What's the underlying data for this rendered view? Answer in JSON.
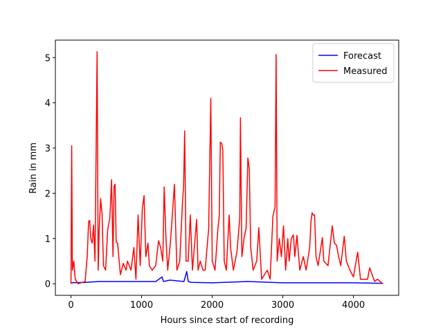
{
  "chart_data": {
    "type": "line",
    "xlabel": "Hours since start of recording",
    "ylabel": "Rain in mm",
    "xlim": [
      -221,
      4641
    ],
    "ylim": [
      -0.2565,
      5.3865
    ],
    "xticks": [
      0,
      1000,
      2000,
      3000,
      4000
    ],
    "yticks": [
      0,
      1,
      2,
      3,
      4,
      5
    ],
    "legend": "upper right",
    "series": [
      {
        "name": "Forecast",
        "color": "#0000ff",
        "x": [
          0,
          200,
          400,
          800,
          1200,
          1290,
          1310,
          1400,
          1600,
          1640,
          1660,
          1700,
          2000,
          2500,
          3000,
          3500,
          4000,
          4420
        ],
        "values": [
          0.02,
          0.03,
          0.05,
          0.05,
          0.05,
          0.15,
          0.05,
          0.08,
          0.05,
          0.27,
          0.05,
          0.03,
          0.02,
          0.05,
          0.02,
          0.02,
          0.02,
          0.01
        ]
      },
      {
        "name": "Measured",
        "color": "#ff0000",
        "x": [
          0,
          10,
          20,
          40,
          60,
          100,
          200,
          230,
          250,
          265,
          280,
          300,
          320,
          340,
          370,
          385,
          400,
          420,
          440,
          460,
          490,
          520,
          550,
          575,
          595,
          610,
          625,
          640,
          660,
          700,
          740,
          780,
          800,
          850,
          890,
          920,
          950,
          980,
          1010,
          1035,
          1060,
          1090,
          1110,
          1150,
          1200,
          1240,
          1270,
          1300,
          1320,
          1345,
          1370,
          1410,
          1430,
          1465,
          1500,
          1540,
          1580,
          1595,
          1610,
          1630,
          1660,
          1690,
          1720,
          1780,
          1800,
          1830,
          1870,
          1900,
          1950,
          1980,
          2000,
          2040,
          2080,
          2100,
          2115,
          2135,
          2150,
          2170,
          2200,
          2240,
          2260,
          2300,
          2350,
          2390,
          2400,
          2420,
          2450,
          2480,
          2505,
          2525,
          2545,
          2580,
          2630,
          2660,
          2700,
          2780,
          2820,
          2860,
          2890,
          2905,
          2920,
          2950,
          2980,
          3010,
          3040,
          3070,
          3090,
          3120,
          3150,
          3170,
          3200,
          3240,
          3290,
          3330,
          3380,
          3400,
          3415,
          3430,
          3450,
          3470,
          3500,
          3560,
          3580,
          3640,
          3700,
          3730,
          3760,
          3790,
          3820,
          3870,
          3900,
          3950,
          4000,
          4060,
          4100,
          4200,
          4230,
          4300,
          4340,
          4400,
          4420
        ],
        "values": [
          0,
          3.05,
          0.3,
          0.5,
          0.1,
          0,
          0.05,
          0.6,
          1.38,
          1.4,
          1.0,
          0.9,
          1.3,
          0.5,
          5.13,
          0.3,
          1.2,
          1.88,
          1.55,
          0.4,
          0.3,
          1.2,
          1.45,
          2.3,
          0.6,
          2.15,
          2.2,
          0.92,
          0.9,
          0.2,
          0.45,
          0.3,
          0.5,
          0.3,
          0.8,
          0.1,
          1.52,
          0.4,
          1.65,
          1.95,
          0.6,
          0.9,
          0.4,
          0.3,
          0.4,
          0.95,
          0.8,
          0.5,
          2.14,
          1.0,
          0.3,
          0.95,
          1.4,
          2.2,
          0.3,
          0.5,
          1.82,
          2.15,
          3.38,
          0.5,
          0.5,
          1.52,
          0.3,
          1.42,
          0.3,
          0.5,
          0.3,
          0.3,
          1.22,
          4.1,
          0.5,
          0.3,
          1.2,
          1.5,
          3.13,
          3.1,
          2.95,
          0.5,
          0.3,
          1.52,
          0.8,
          0.3,
          0.7,
          1.45,
          3.67,
          0.6,
          1.0,
          1.22,
          2.78,
          2.55,
          0.8,
          0.3,
          0.5,
          1.24,
          0.1,
          0.3,
          0.1,
          1.5,
          1.7,
          5.07,
          0.5,
          1.0,
          0.6,
          1.28,
          0.3,
          1.0,
          0.5,
          1.0,
          1.08,
          0.6,
          1.07,
          0.3,
          0.6,
          0.3,
          0.8,
          1.4,
          1.57,
          1.52,
          1.52,
          0.6,
          0.4,
          1.02,
          0.5,
          0.4,
          1.28,
          0.9,
          0.85,
          0.6,
          0.4,
          1.05,
          0.5,
          0.3,
          0.15,
          0.7,
          0.1,
          0.1,
          0.35,
          0.05,
          0.1,
          0.02,
          0
        ]
      }
    ]
  }
}
